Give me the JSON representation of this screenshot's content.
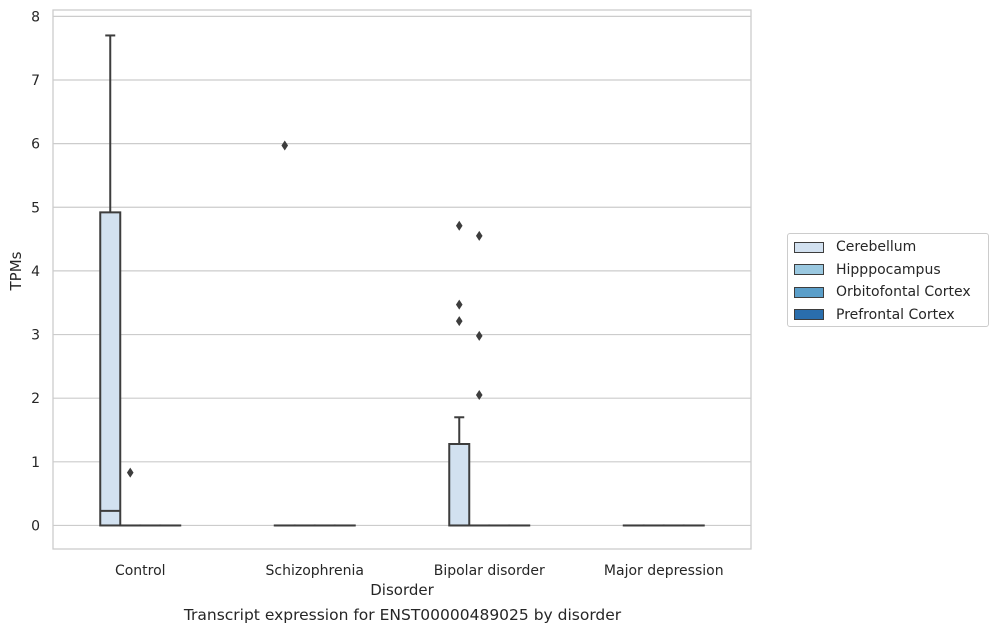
{
  "caption": "Transcript expression for ENST00000489025 by disorder",
  "chart_data": {
    "type": "box",
    "xlabel": "Disorder",
    "ylabel": "TPMs",
    "ylim": [
      -0.37,
      8.1
    ],
    "yticks": [
      0,
      1,
      2,
      3,
      4,
      5,
      6,
      7,
      8
    ],
    "grid": "horizontal",
    "legend_position": "right",
    "categories": [
      "Control",
      "Schizophrenia",
      "Bipolar disorder",
      "Major depression"
    ],
    "series": [
      {
        "name": "Cerebellum",
        "color": "#d2e1f0",
        "boxes": [
          {
            "min": 0,
            "q1": 0,
            "median": 0.23,
            "q3": 4.92,
            "max": 7.7,
            "outliers": []
          },
          {
            "min": 0,
            "q1": 0,
            "median": 0,
            "q3": 0,
            "max": 0,
            "outliers": [
              5.97
            ]
          },
          {
            "min": 0,
            "q1": 0,
            "median": 0,
            "q3": 1.28,
            "max": 1.7,
            "outliers": [
              3.21,
              3.47,
              4.71
            ]
          },
          {
            "min": 0,
            "q1": 0,
            "median": 0,
            "q3": 0,
            "max": 0,
            "outliers": []
          }
        ]
      },
      {
        "name": "Hipppocampus",
        "color": "#9ac8e0",
        "boxes": [
          {
            "min": 0,
            "q1": 0,
            "median": 0,
            "q3": 0,
            "max": 0,
            "outliers": [
              0.83
            ]
          },
          {
            "min": 0,
            "q1": 0,
            "median": 0,
            "q3": 0,
            "max": 0,
            "outliers": []
          },
          {
            "min": 0,
            "q1": 0,
            "median": 0,
            "q3": 0,
            "max": 0,
            "outliers": [
              2.05,
              2.98,
              4.55
            ]
          },
          {
            "min": 0,
            "q1": 0,
            "median": 0,
            "q3": 0,
            "max": 0,
            "outliers": []
          }
        ]
      },
      {
        "name": "Orbitofontal Cortex",
        "color": "#5a9ec9",
        "boxes": [
          {
            "min": 0,
            "q1": 0,
            "median": 0,
            "q3": 0,
            "max": 0,
            "outliers": []
          },
          {
            "min": 0,
            "q1": 0,
            "median": 0,
            "q3": 0,
            "max": 0,
            "outliers": []
          },
          {
            "min": 0,
            "q1": 0,
            "median": 0,
            "q3": 0,
            "max": 0,
            "outliers": []
          },
          {
            "min": 0,
            "q1": 0,
            "median": 0,
            "q3": 0,
            "max": 0,
            "outliers": []
          }
        ]
      },
      {
        "name": "Prefrontal Cortex",
        "color": "#2a6ead",
        "boxes": [
          {
            "min": 0,
            "q1": 0,
            "median": 0,
            "q3": 0,
            "max": 0,
            "outliers": []
          },
          {
            "min": 0,
            "q1": 0,
            "median": 0,
            "q3": 0,
            "max": 0,
            "outliers": []
          },
          {
            "min": 0,
            "q1": 0,
            "median": 0,
            "q3": 0,
            "max": 0,
            "outliers": []
          },
          {
            "min": 0,
            "q1": 0,
            "median": 0,
            "q3": 0,
            "max": 0,
            "outliers": []
          }
        ]
      }
    ]
  }
}
